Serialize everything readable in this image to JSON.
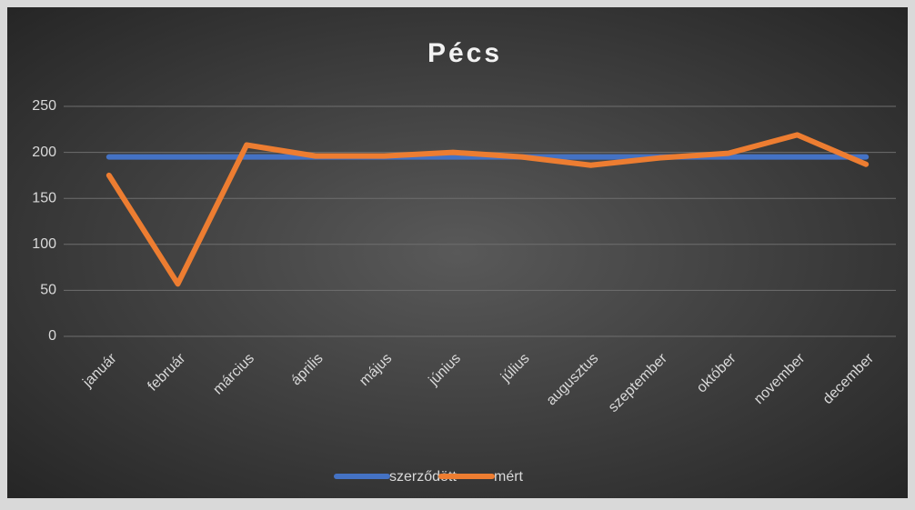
{
  "chart_data": {
    "type": "line",
    "title": "Pécs",
    "categories": [
      "január",
      "február",
      "március",
      "április",
      "május",
      "június",
      "július",
      "augusztus",
      "szeptember",
      "október",
      "november",
      "december"
    ],
    "series": [
      {
        "name": "szerződött",
        "color": "#4472c4",
        "values": [
          195,
          195,
          195,
          195,
          195,
          195,
          195,
          195,
          195,
          195,
          195,
          195
        ]
      },
      {
        "name": "mért",
        "color": "#ed7d31",
        "values": [
          175,
          57,
          208,
          196,
          196,
          200,
          195,
          186,
          194,
          199,
          219,
          187
        ]
      }
    ],
    "ylim": [
      0,
      250
    ],
    "yticks": [
      0,
      50,
      100,
      150,
      200,
      250
    ],
    "grid": true,
    "legend": "bottom"
  }
}
